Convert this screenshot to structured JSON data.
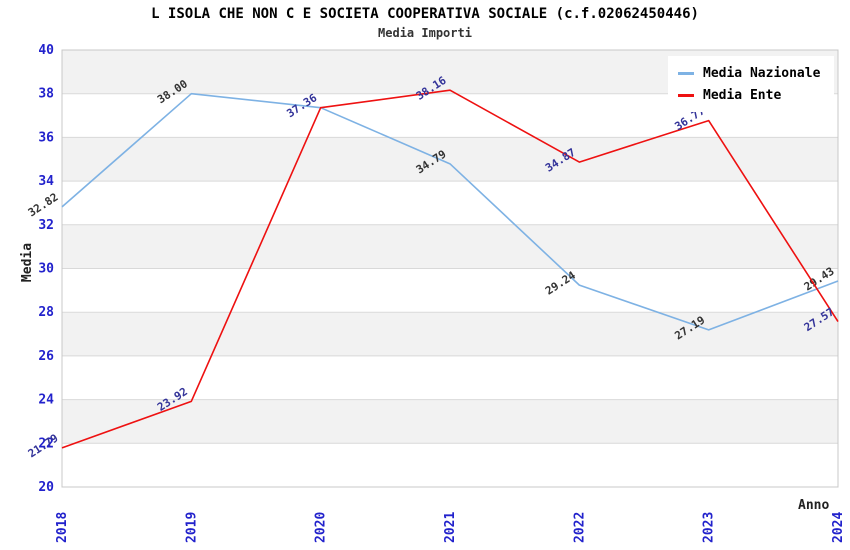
{
  "header": {
    "title": "L ISOLA CHE NON C E SOCIETA COOPERATIVA SOCIALE (c.f.02062450446)",
    "subtitle": "Media Importi"
  },
  "chart_data": {
    "type": "line",
    "title": "L ISOLA CHE NON C E SOCIETA COOPERATIVA SOCIALE (c.f.02062450446)",
    "subtitle": "Media Importi",
    "x": [
      "2018",
      "2019",
      "2020",
      "2021",
      "2022",
      "2023",
      "2024"
    ],
    "xlabel": "Anno",
    "ylabel": "Media",
    "ylim": [
      20,
      40
    ],
    "ytick_step": 2,
    "grid": true,
    "legend_position": "top-right",
    "series": [
      {
        "name": "Media Nazionale",
        "color": "#7eb2e4",
        "label_color": "#333333",
        "values": [
          32.82,
          38.0,
          37.36,
          34.79,
          29.24,
          27.19,
          29.43
        ],
        "labels": [
          "32.82",
          "38.00",
          null,
          "34.79",
          "29.24",
          "27.19",
          "29.43"
        ]
      },
      {
        "name": "Media Ente",
        "color": "#ee1111",
        "label_color": "#333399",
        "values": [
          21.79,
          23.92,
          37.36,
          38.16,
          34.87,
          36.77,
          27.57
        ],
        "labels": [
          "21.79",
          "23.92",
          "37.36",
          "38.16",
          "34.87",
          "36.77",
          "27.57"
        ]
      }
    ]
  },
  "colors": {
    "grid": "#d9d9d9",
    "band": "#f2f2f2",
    "border": "#c8c8c8",
    "tick_text": "#2222cc",
    "title": "#000000",
    "subtitle": "#333333",
    "legend_bg": "#ffffff"
  }
}
